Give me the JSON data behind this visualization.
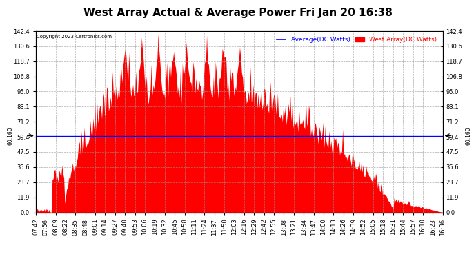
{
  "title": "West Array Actual & Average Power Fri Jan 20 16:38",
  "copyright": "Copyright 2023 Cartronics.com",
  "legend_avg": "Average(DC Watts)",
  "legend_west": "West Array(DC Watts)",
  "avg_color": "#0000ff",
  "west_color": "#ff0000",
  "avg_line_value": 60.16,
  "avg_label": "60.160",
  "ylim": [
    0,
    142.4
  ],
  "yticks": [
    0.0,
    11.9,
    23.7,
    35.6,
    47.5,
    59.4,
    71.2,
    83.1,
    95.0,
    106.8,
    118.7,
    130.6,
    142.4
  ],
  "background_color": "#ffffff",
  "grid_color": "#999999",
  "title_fontsize": 11,
  "tick_fontsize": 6,
  "x_tick_labels": [
    "07:42",
    "07:56",
    "08:09",
    "08:22",
    "08:35",
    "08:48",
    "09:01",
    "09:14",
    "09:27",
    "09:40",
    "09:53",
    "10:06",
    "10:19",
    "10:32",
    "10:45",
    "10:58",
    "11:11",
    "11:24",
    "11:37",
    "11:50",
    "12:03",
    "12:16",
    "12:29",
    "12:42",
    "12:55",
    "13:08",
    "13:21",
    "13:34",
    "13:47",
    "14:00",
    "14:13",
    "14:26",
    "14:39",
    "14:52",
    "15:05",
    "15:18",
    "15:31",
    "15:44",
    "15:57",
    "16:10",
    "16:23",
    "16:36"
  ],
  "n_points": 420
}
